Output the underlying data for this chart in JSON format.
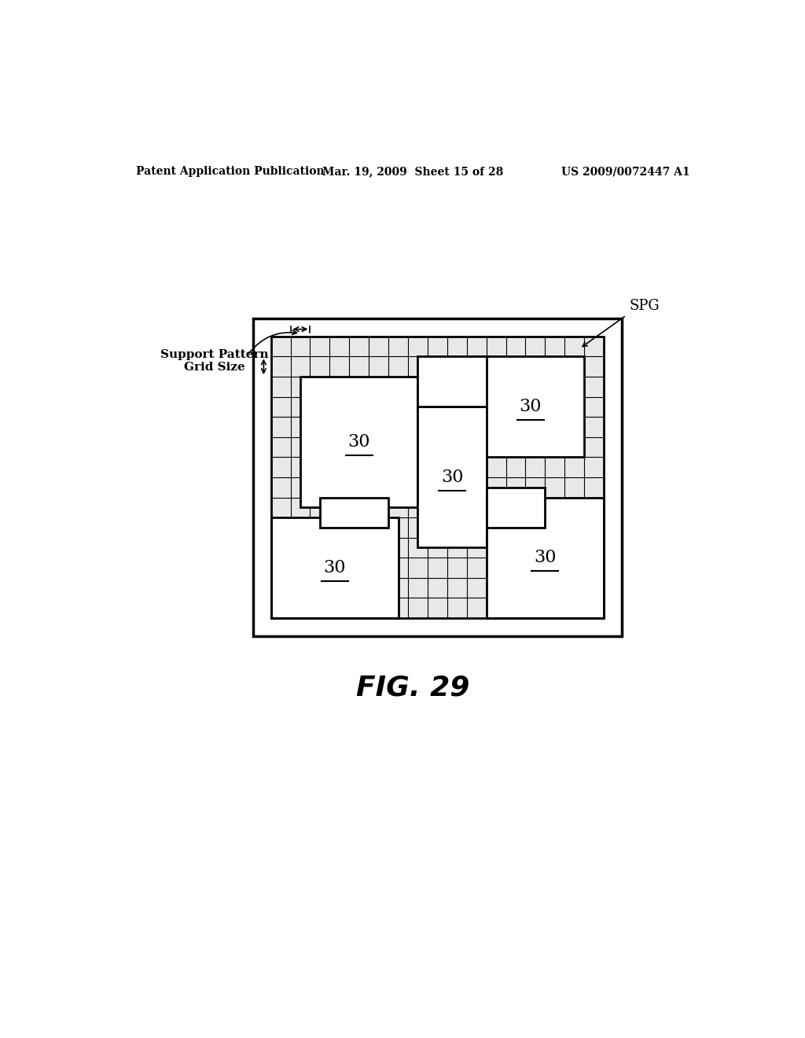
{
  "background_color": "#ffffff",
  "header_left": "Patent Application Publication",
  "header_mid": "Mar. 19, 2009  Sheet 15 of 28",
  "header_right": "US 2009/0072447 A1",
  "fig_label": "FIG. 29",
  "spg_label": "SPG",
  "support_pattern_label": "Support Pattern\nGrid Size",
  "lw_outer": 2.5,
  "lw_border": 2.0,
  "lw_grid": 0.8,
  "lw_annot": 1.2,
  "cs": 0.033
}
